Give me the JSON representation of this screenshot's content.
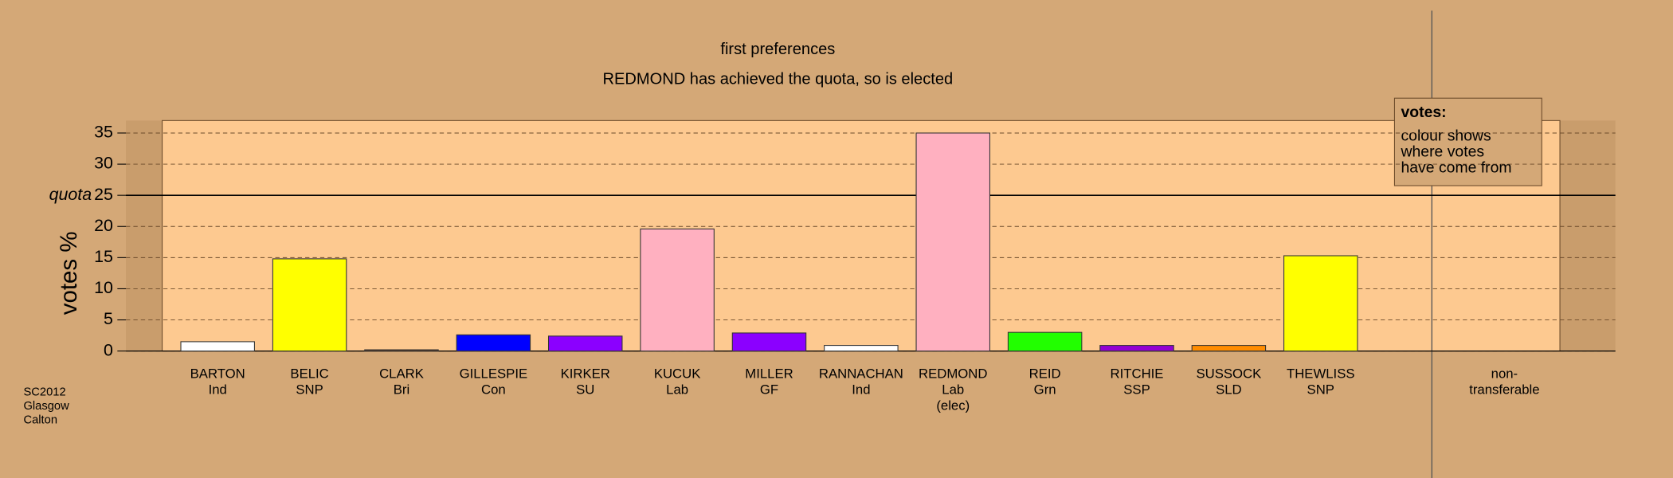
{
  "chart_data": {
    "type": "bar",
    "title": "first preferences",
    "subtitle": "REDMOND has achieved the quota, so is elected",
    "y_label": "votes %",
    "categories": [
      [
        "BARTON",
        "Ind"
      ],
      [
        "BELIC",
        "SNP"
      ],
      [
        "CLARK",
        "Bri"
      ],
      [
        "GILLESPIE",
        "Con"
      ],
      [
        "KIRKER",
        "SU"
      ],
      [
        "KUCUK",
        "Lab"
      ],
      [
        "MILLER",
        "GF"
      ],
      [
        "RANNACHAN",
        "Ind"
      ],
      [
        "REDMOND",
        "Lab",
        "(elec)"
      ],
      [
        "REID",
        "Grn"
      ],
      [
        "RITCHIE",
        "SSP"
      ],
      [
        "SUSSOCK",
        "SLD"
      ],
      [
        "THEWLISS",
        "SNP"
      ],
      [
        "non-",
        "transferable"
      ]
    ],
    "values": [
      1.5,
      14.8,
      0.2,
      2.6,
      2.4,
      19.6,
      2.9,
      0.9,
      35,
      3.0,
      0.9,
      0.9,
      15.3,
      0
    ],
    "colors": [
      "#ffffff",
      "#ffff00",
      "#6b3a1e",
      "#0000ff",
      "#8b00ff",
      "#ffb0c0",
      "#8b00ff",
      "#ffffff",
      "#ffb0c0",
      "#22ff00",
      "#9400d3",
      "#ff8c00",
      "#ffff00",
      "#ffffff"
    ],
    "ylim": [
      0,
      37
    ],
    "yticks": [
      0,
      5,
      10,
      15,
      20,
      25,
      30,
      35
    ],
    "grid": true,
    "quota": {
      "value": 25,
      "label": "quota"
    },
    "legend": {
      "title": "votes:",
      "lines": [
        "colour shows",
        "where votes",
        "have come from"
      ]
    },
    "footer": [
      "SC2012",
      "Glasgow",
      "Calton"
    ]
  }
}
